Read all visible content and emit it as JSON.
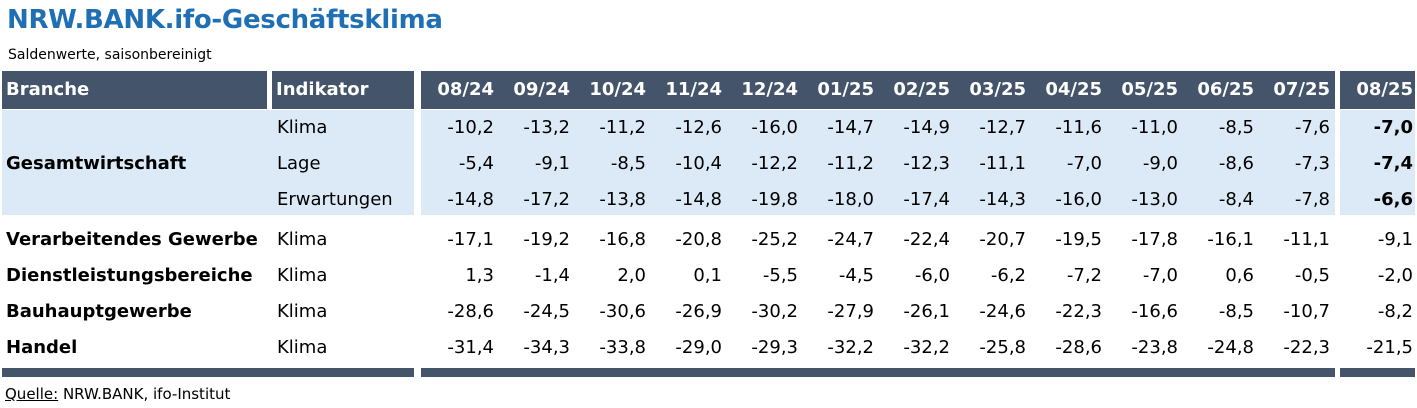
{
  "title": "NRW.BANK.ifo-Geschäftsklima",
  "subtitle": "Saldenwerte, saisonbereinigt",
  "colors": {
    "title": "#1f6fb5",
    "header_bg": "#44546a",
    "header_text": "#ffffff",
    "highlight_bg": "#dce9f6"
  },
  "header": {
    "branche": "Branche",
    "indikator": "Indikator",
    "months": [
      "08/24",
      "09/24",
      "10/24",
      "11/24",
      "12/24",
      "01/25",
      "02/25",
      "03/25",
      "04/25",
      "05/25",
      "06/25",
      "07/25"
    ],
    "current_month": "08/25"
  },
  "rows": [
    {
      "branche": "Gesamtwirtschaft",
      "indikator": "Klima",
      "values": [
        "-10,2",
        "-13,2",
        "-11,2",
        "-12,6",
        "-16,0",
        "-14,7",
        "-14,9",
        "-12,7",
        "-11,6",
        "-11,0",
        "-8,5",
        "-7,6"
      ],
      "current": "-7,0"
    },
    {
      "branche": "",
      "indikator": "Lage",
      "values": [
        "-5,4",
        "-9,1",
        "-8,5",
        "-10,4",
        "-12,2",
        "-11,2",
        "-12,3",
        "-11,1",
        "-7,0",
        "-9,0",
        "-8,6",
        "-7,3"
      ],
      "current": "-7,4"
    },
    {
      "branche": "",
      "indikator": "Erwartungen",
      "values": [
        "-14,8",
        "-17,2",
        "-13,8",
        "-14,8",
        "-19,8",
        "-18,0",
        "-17,4",
        "-14,3",
        "-16,0",
        "-13,0",
        "-8,4",
        "-7,8"
      ],
      "current": "-6,6"
    },
    {
      "branche": "Verarbeitendes Gewerbe",
      "indikator": "Klima",
      "values": [
        "-17,1",
        "-19,2",
        "-16,8",
        "-20,8",
        "-25,2",
        "-24,7",
        "-22,4",
        "-20,7",
        "-19,5",
        "-17,8",
        "-16,1",
        "-11,1"
      ],
      "current": "-9,1"
    },
    {
      "branche": "Dienstleistungsbereiche",
      "indikator": "Klima",
      "values": [
        "1,3",
        "-1,4",
        "2,0",
        "0,1",
        "-5,5",
        "-4,5",
        "-6,0",
        "-6,2",
        "-7,2",
        "-7,0",
        "0,6",
        "-0,5"
      ],
      "current": "-2,0"
    },
    {
      "branche": "Bauhauptgewerbe",
      "indikator": "Klima",
      "values": [
        "-28,6",
        "-24,5",
        "-30,6",
        "-26,9",
        "-30,2",
        "-27,9",
        "-26,1",
        "-24,6",
        "-22,3",
        "-16,6",
        "-8,5",
        "-10,7"
      ],
      "current": "-8,2"
    },
    {
      "branche": "Handel",
      "indikator": "Klima",
      "values": [
        "-31,4",
        "-34,3",
        "-33,8",
        "-29,0",
        "-29,3",
        "-32,2",
        "-32,2",
        "-25,8",
        "-28,6",
        "-23,8",
        "-24,8",
        "-22,3"
      ],
      "current": "-21,5"
    }
  ],
  "source": {
    "label": "Quelle:",
    "text": " NRW.BANK, ifo-Institut"
  }
}
